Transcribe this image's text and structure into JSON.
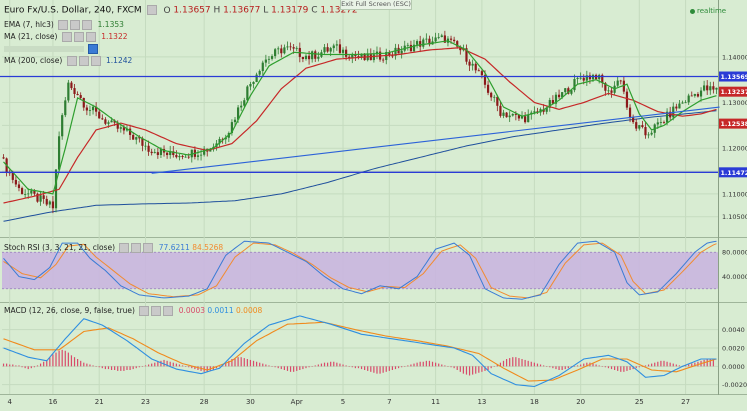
{
  "header": {
    "instrument": "Euro Fx/U.S. Dollar, 240, FXCM",
    "o_label": "O",
    "o_value": "1.13657",
    "h_label": "H",
    "h_value": "1.13677",
    "l_label": "L",
    "l_value": "1.13179",
    "c_label": "C",
    "c_value": "1.13272"
  },
  "exit_full_screen": "Exit Full Screen (ESC)",
  "realtime": "realtime",
  "colors": {
    "background": "#d8ecd2",
    "candle_up": "#2e7d32",
    "candle_down": "#8b1a1a",
    "ema": "#2e9e2e",
    "ma21": "#c62828",
    "ma200": "#1e4f9c",
    "hline": "#2a3bd6",
    "trend": "#2c62d8",
    "stoch_k": "#3a7bd5",
    "stoch_d": "#f28b30",
    "stoch_band": "#c9b3e0",
    "macd": "#2f8fe0",
    "macd_signal": "#f08a1c",
    "macd_hist": "#d84a6a"
  },
  "chart_data": {
    "type": "candlestick",
    "title": "Euro Fx/U.S. Dollar, 240, FXCM",
    "ylim": [
      1.101,
      1.152
    ],
    "y_ticks": [
      "1.14000",
      "1.13000",
      "1.12500",
      "1.12000",
      "1.11500",
      "1.11000",
      "1.10500"
    ],
    "y_tick_values": [
      1.14,
      1.13,
      1.125,
      1.12,
      1.115,
      1.11,
      1.105
    ],
    "x_labels": [
      "4",
      "16",
      "21",
      "23",
      "28",
      "30",
      "Apr",
      "5",
      "7",
      "11",
      "13",
      "18",
      "20",
      "25",
      "27"
    ],
    "x_label_positions": [
      2,
      16,
      31,
      46,
      65,
      80,
      95,
      110,
      125,
      140,
      155,
      172,
      187,
      206,
      221
    ],
    "n_bars": 232,
    "key_points": [
      [
        0,
        1.118
      ],
      [
        6,
        1.111
      ],
      [
        12,
        1.109
      ],
      [
        17,
        1.107
      ],
      [
        19,
        1.123
      ],
      [
        22,
        1.134
      ],
      [
        25,
        1.132
      ],
      [
        28,
        1.129
      ],
      [
        32,
        1.127
      ],
      [
        36,
        1.125
      ],
      [
        42,
        1.123
      ],
      [
        48,
        1.12
      ],
      [
        55,
        1.1185
      ],
      [
        62,
        1.119
      ],
      [
        68,
        1.12
      ],
      [
        74,
        1.124
      ],
      [
        80,
        1.133
      ],
      [
        85,
        1.139
      ],
      [
        92,
        1.142
      ],
      [
        100,
        1.14
      ],
      [
        108,
        1.142
      ],
      [
        118,
        1.1395
      ],
      [
        128,
        1.141
      ],
      [
        136,
        1.143
      ],
      [
        144,
        1.144
      ],
      [
        150,
        1.141
      ],
      [
        156,
        1.135
      ],
      [
        162,
        1.128
      ],
      [
        168,
        1.1265
      ],
      [
        172,
        1.127
      ],
      [
        178,
        1.1295
      ],
      [
        184,
        1.133
      ],
      [
        188,
        1.1355
      ],
      [
        193,
        1.136
      ],
      [
        197,
        1.132
      ],
      [
        201,
        1.1355
      ],
      [
        204,
        1.126
      ],
      [
        209,
        1.123
      ],
      [
        214,
        1.1255
      ],
      [
        219,
        1.129
      ],
      [
        224,
        1.1315
      ],
      [
        228,
        1.133
      ],
      [
        231,
        1.1327
      ]
    ],
    "ema": {
      "label": "EMA (7, hlc3)",
      "value": "1.1353",
      "points": [
        [
          0,
          1.117
        ],
        [
          8,
          1.111
        ],
        [
          16,
          1.11
        ],
        [
          20,
          1.12
        ],
        [
          24,
          1.131
        ],
        [
          30,
          1.129
        ],
        [
          36,
          1.126
        ],
        [
          44,
          1.1225
        ],
        [
          52,
          1.1195
        ],
        [
          60,
          1.1185
        ],
        [
          68,
          1.12
        ],
        [
          74,
          1.1235
        ],
        [
          80,
          1.1315
        ],
        [
          86,
          1.138
        ],
        [
          94,
          1.141
        ],
        [
          104,
          1.1405
        ],
        [
          114,
          1.1405
        ],
        [
          124,
          1.1408
        ],
        [
          134,
          1.1425
        ],
        [
          144,
          1.1435
        ],
        [
          150,
          1.1415
        ],
        [
          156,
          1.1365
        ],
        [
          162,
          1.129
        ],
        [
          168,
          1.127
        ],
        [
          174,
          1.128
        ],
        [
          180,
          1.1305
        ],
        [
          186,
          1.134
        ],
        [
          192,
          1.135
        ],
        [
          198,
          1.133
        ],
        [
          202,
          1.134
        ],
        [
          206,
          1.1275
        ],
        [
          210,
          1.124
        ],
        [
          214,
          1.125
        ],
        [
          220,
          1.128
        ],
        [
          226,
          1.1305
        ],
        [
          231,
          1.1315
        ]
      ]
    },
    "ma21": {
      "label": "MA (21, close)",
      "value": "1.1322",
      "points": [
        [
          0,
          1.108
        ],
        [
          10,
          1.1095
        ],
        [
          18,
          1.111
        ],
        [
          24,
          1.118
        ],
        [
          30,
          1.124
        ],
        [
          38,
          1.1255
        ],
        [
          46,
          1.124
        ],
        [
          56,
          1.121
        ],
        [
          66,
          1.1195
        ],
        [
          74,
          1.121
        ],
        [
          82,
          1.126
        ],
        [
          90,
          1.133
        ],
        [
          98,
          1.1375
        ],
        [
          108,
          1.1395
        ],
        [
          118,
          1.14
        ],
        [
          128,
          1.1405
        ],
        [
          138,
          1.1415
        ],
        [
          148,
          1.142
        ],
        [
          156,
          1.1395
        ],
        [
          164,
          1.1345
        ],
        [
          172,
          1.13
        ],
        [
          180,
          1.1285
        ],
        [
          188,
          1.13
        ],
        [
          196,
          1.132
        ],
        [
          204,
          1.1305
        ],
        [
          212,
          1.128
        ],
        [
          220,
          1.127
        ],
        [
          226,
          1.1275
        ],
        [
          231,
          1.1285
        ]
      ]
    },
    "ma200": {
      "label": "MA (200, close)",
      "value": "1.1242",
      "points": [
        [
          0,
          1.104
        ],
        [
          15,
          1.106
        ],
        [
          30,
          1.1075
        ],
        [
          45,
          1.1078
        ],
        [
          60,
          1.108
        ],
        [
          75,
          1.1085
        ],
        [
          90,
          1.11
        ],
        [
          105,
          1.1125
        ],
        [
          120,
          1.1155
        ],
        [
          135,
          1.118
        ],
        [
          150,
          1.1205
        ],
        [
          165,
          1.1225
        ],
        [
          180,
          1.124
        ],
        [
          195,
          1.1255
        ],
        [
          210,
          1.1268
        ],
        [
          231,
          1.1282
        ]
      ]
    },
    "horizontal_lines": [
      {
        "label": "1.13569",
        "value": 1.13569
      },
      {
        "label": "1.11472",
        "value": 1.11472
      }
    ],
    "trend_line": {
      "from": [
        48,
        1.1145
      ],
      "to": [
        232,
        1.129
      ]
    },
    "price_tags": [
      {
        "label": "1.13569",
        "value": 1.13569,
        "color": "#2a3bd6"
      },
      {
        "label": "1.13237",
        "value": 1.13237,
        "color": "#c62828"
      },
      {
        "label": "1.12538",
        "value": 1.12538,
        "color": "#c62828"
      },
      {
        "label": "1.11472",
        "value": 1.11472,
        "color": "#2a3bd6"
      }
    ]
  },
  "stoch": {
    "label": "Stoch RSI (3, 3, 21, 21, close)",
    "k_value": "77.6211",
    "d_value": "84.5268",
    "ylim": [
      0,
      100
    ],
    "band": [
      20,
      80
    ],
    "y_ticks": [
      "80.0000",
      "40.0000"
    ],
    "y_tick_values": [
      80,
      40
    ],
    "k_points": [
      [
        0,
        70
      ],
      [
        5,
        40
      ],
      [
        10,
        35
      ],
      [
        15,
        55
      ],
      [
        19,
        95
      ],
      [
        24,
        95
      ],
      [
        28,
        70
      ],
      [
        33,
        50
      ],
      [
        38,
        25
      ],
      [
        44,
        10
      ],
      [
        52,
        5
      ],
      [
        60,
        8
      ],
      [
        66,
        20
      ],
      [
        72,
        75
      ],
      [
        78,
        98
      ],
      [
        86,
        95
      ],
      [
        92,
        80
      ],
      [
        98,
        65
      ],
      [
        104,
        40
      ],
      [
        110,
        20
      ],
      [
        116,
        12
      ],
      [
        122,
        25
      ],
      [
        128,
        20
      ],
      [
        134,
        40
      ],
      [
        140,
        85
      ],
      [
        146,
        95
      ],
      [
        151,
        75
      ],
      [
        156,
        20
      ],
      [
        162,
        5
      ],
      [
        168,
        3
      ],
      [
        174,
        10
      ],
      [
        180,
        60
      ],
      [
        186,
        95
      ],
      [
        192,
        98
      ],
      [
        198,
        80
      ],
      [
        202,
        30
      ],
      [
        206,
        10
      ],
      [
        212,
        15
      ],
      [
        218,
        45
      ],
      [
        224,
        80
      ],
      [
        228,
        95
      ],
      [
        231,
        98
      ]
    ],
    "d_points": [
      [
        0,
        65
      ],
      [
        6,
        45
      ],
      [
        12,
        38
      ],
      [
        17,
        60
      ],
      [
        21,
        90
      ],
      [
        26,
        93
      ],
      [
        30,
        72
      ],
      [
        35,
        52
      ],
      [
        41,
        28
      ],
      [
        47,
        12
      ],
      [
        55,
        7
      ],
      [
        63,
        10
      ],
      [
        69,
        25
      ],
      [
        75,
        72
      ],
      [
        81,
        95
      ],
      [
        88,
        92
      ],
      [
        94,
        78
      ],
      [
        100,
        60
      ],
      [
        106,
        38
      ],
      [
        112,
        22
      ],
      [
        118,
        15
      ],
      [
        124,
        24
      ],
      [
        130,
        22
      ],
      [
        136,
        45
      ],
      [
        142,
        82
      ],
      [
        148,
        92
      ],
      [
        153,
        70
      ],
      [
        158,
        22
      ],
      [
        164,
        8
      ],
      [
        170,
        5
      ],
      [
        176,
        14
      ],
      [
        182,
        62
      ],
      [
        188,
        92
      ],
      [
        194,
        95
      ],
      [
        200,
        75
      ],
      [
        204,
        32
      ],
      [
        208,
        12
      ],
      [
        214,
        18
      ],
      [
        220,
        48
      ],
      [
        226,
        80
      ],
      [
        230,
        92
      ],
      [
        231,
        94
      ]
    ]
  },
  "macd": {
    "label": "MACD (12, 26, close, 9, false, true)",
    "macd_value": "0.0003",
    "signal_value": "0.0011",
    "hist_value": "0.0008",
    "ylim": [
      -0.0028,
      0.0068
    ],
    "y_ticks": [
      "0.0040",
      "0.0020",
      "0.0000",
      "-0.0020"
    ],
    "y_tick_values": [
      0.004,
      0.002,
      0.0,
      -0.002
    ],
    "macd_points": [
      [
        0,
        0.002
      ],
      [
        8,
        0.001
      ],
      [
        14,
        0.0006
      ],
      [
        20,
        0.003
      ],
      [
        26,
        0.0052
      ],
      [
        32,
        0.0045
      ],
      [
        40,
        0.0028
      ],
      [
        48,
        0.0008
      ],
      [
        56,
        -0.0003
      ],
      [
        64,
        -0.0008
      ],
      [
        70,
        -0.0002
      ],
      [
        78,
        0.0025
      ],
      [
        86,
        0.0045
      ],
      [
        96,
        0.0055
      ],
      [
        106,
        0.0046
      ],
      [
        116,
        0.0035
      ],
      [
        126,
        0.003
      ],
      [
        136,
        0.0025
      ],
      [
        146,
        0.002
      ],
      [
        152,
        0.0012
      ],
      [
        158,
        -0.0008
      ],
      [
        166,
        -0.002
      ],
      [
        172,
        -0.0022
      ],
      [
        180,
        -0.001
      ],
      [
        188,
        0.0008
      ],
      [
        196,
        0.0012
      ],
      [
        202,
        0.0005
      ],
      [
        208,
        -0.0012
      ],
      [
        214,
        -0.001
      ],
      [
        220,
        0.0
      ],
      [
        226,
        0.0008
      ],
      [
        231,
        0.0008
      ]
    ],
    "signal_points": [
      [
        0,
        0.003
      ],
      [
        10,
        0.0018
      ],
      [
        18,
        0.0018
      ],
      [
        26,
        0.0038
      ],
      [
        34,
        0.0042
      ],
      [
        42,
        0.003
      ],
      [
        50,
        0.0015
      ],
      [
        58,
        0.0003
      ],
      [
        66,
        -0.0004
      ],
      [
        74,
        0.0006
      ],
      [
        82,
        0.0028
      ],
      [
        92,
        0.0046
      ],
      [
        104,
        0.0048
      ],
      [
        114,
        0.004
      ],
      [
        124,
        0.0033
      ],
      [
        134,
        0.0028
      ],
      [
        144,
        0.0022
      ],
      [
        154,
        0.0014
      ],
      [
        162,
        -0.0002
      ],
      [
        170,
        -0.0016
      ],
      [
        178,
        -0.0015
      ],
      [
        186,
        -0.0004
      ],
      [
        194,
        0.0008
      ],
      [
        202,
        0.0008
      ],
      [
        210,
        -0.0004
      ],
      [
        218,
        -0.0006
      ],
      [
        226,
        0.0003
      ],
      [
        231,
        0.0008
      ]
    ],
    "hist_values": [
      0.0003,
      0.0003,
      0.0002,
      0.0002,
      0.0001,
      0.0001,
      -0.0001,
      -0.0002,
      -0.0003,
      -0.0002,
      -0.0001,
      0.0001,
      0.0003,
      0.0005,
      0.0007,
      0.001,
      0.0013,
      0.0015,
      0.0017,
      0.0018,
      0.0017,
      0.0015,
      0.0012,
      0.001,
      0.0008,
      0.0006,
      0.0004,
      0.0003,
      0.0002,
      0.0001,
      0.0,
      -0.0001,
      -0.0002,
      -0.0003,
      -0.0003,
      -0.0004,
      -0.0004,
      -0.0005,
      -0.0005,
      -0.0005,
      -0.0004,
      -0.0004,
      -0.0003,
      -0.0002,
      -0.0001,
      0.0,
      0.0001,
      0.0002,
      0.0003,
      0.0004,
      0.0005,
      0.0006,
      0.0007,
      0.0006,
      0.0005,
      0.0004,
      0.0003,
      0.0002,
      0.0001,
      0.0,
      -0.0001,
      -0.0002,
      -0.0003,
      -0.0004,
      -0.0005,
      -0.0006,
      -0.0006,
      -0.0005,
      -0.0004,
      -0.0002,
      0.0,
      0.0002,
      0.0004,
      0.0006,
      0.0008,
      0.0009,
      0.001,
      0.001,
      0.0009,
      0.0008,
      0.0007,
      0.0006,
      0.0005,
      0.0004,
      0.0003,
      0.0002,
      0.0001,
      0.0,
      -0.0001,
      -0.0002,
      -0.0003,
      -0.0004,
      -0.0005,
      -0.0006,
      -0.0006,
      -0.0005,
      -0.0004,
      -0.0003,
      -0.0002,
      -0.0001,
      0.0,
      0.0001,
      0.0002,
      0.0003,
      0.0004,
      0.0004,
      0.0005,
      0.0005,
      0.0004,
      0.0003,
      0.0002,
      0.0001,
      0.0,
      -0.0001,
      -0.0002,
      -0.0002,
      -0.0003,
      -0.0004,
      -0.0005,
      -0.0006,
      -0.0007,
      -0.0008,
      -0.0008,
      -0.0007,
      -0.0006,
      -0.0005,
      -0.0004,
      -0.0003,
      -0.0002,
      -0.0001,
      0.0,
      0.0001,
      0.0002,
      0.0003,
      0.0004,
      0.0005,
      0.0005,
      0.0006,
      0.0006,
      0.0005,
      0.0004,
      0.0003,
      0.0002,
      0.0001,
      0.0,
      -0.0001,
      -0.0002,
      -0.0004,
      -0.0006,
      -0.0008,
      -0.0009,
      -0.001,
      -0.0009,
      -0.0008,
      -0.0007,
      -0.0006,
      -0.0005,
      -0.0004,
      -0.0002,
      0.0,
      0.0002,
      0.0004,
      0.0006,
      0.0008,
      0.0009,
      0.001,
      0.001,
      0.0009,
      0.0008,
      0.0007,
      0.0006,
      0.0005,
      0.0004,
      0.0003,
      0.0002,
      0.0001,
      0.0,
      -0.0001,
      -0.0002,
      -0.0003,
      -0.0004,
      -0.0004,
      -0.0003,
      -0.0002,
      -0.0001,
      0.0,
      0.0001,
      0.0002,
      0.0003,
      0.0004,
      0.0004,
      0.0003,
      0.0002,
      0.0001,
      0.0,
      -0.0001,
      -0.0002,
      -0.0003,
      -0.0004,
      -0.0005,
      -0.0006,
      -0.0006,
      -0.0005,
      -0.0004,
      -0.0003,
      -0.0002,
      -0.0001,
      0.0,
      0.0001,
      0.0002,
      0.0003,
      0.0004,
      0.0005,
      0.0006,
      0.0006,
      0.0005,
      0.0004,
      0.0003,
      0.0002,
      0.0001,
      0.0,
      0.0001,
      0.0002,
      0.0003,
      0.0004,
      0.0005,
      0.0006,
      0.0007,
      0.0008,
      0.0008,
      0.0007
    ]
  }
}
